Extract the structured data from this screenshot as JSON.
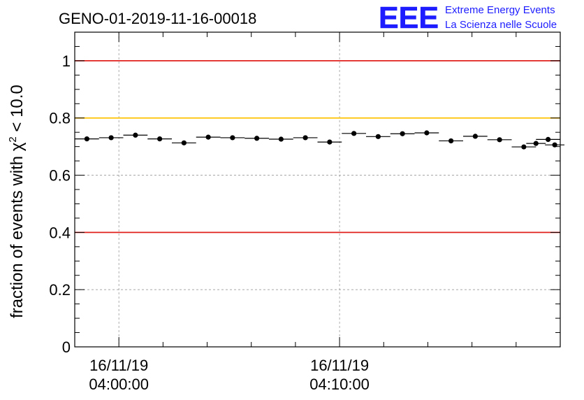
{
  "chart_data": {
    "type": "scatter",
    "title": "GENO-01-2019-11-16-00018",
    "ylabel": "fraction of events with χ² < 10.0",
    "ylabel_parts": {
      "prefix": "fraction of events with ",
      "symbol": "χ",
      "exponent": "2",
      "suffix": " < 10.0"
    },
    "xlabel": "",
    "ylim": [
      0,
      1.1
    ],
    "yticks": [
      0,
      0.2,
      0.4,
      0.6,
      0.8,
      1
    ],
    "ytick_labels": [
      "0",
      "0.2",
      "0.4",
      "0.6",
      "0.8",
      "1"
    ],
    "x_unit": "minutes since 16/11/19 03:58",
    "xlim": [
      0,
      22
    ],
    "xticks": [
      {
        "x": 2,
        "date": "16/11/19",
        "time": "04:00:00"
      },
      {
        "x": 12,
        "date": "16/11/19",
        "time": "04:10:00"
      }
    ],
    "x_minor_ticks": [
      4,
      6,
      8,
      10,
      14,
      16,
      18,
      20
    ],
    "grid": true,
    "reference_lines": [
      {
        "y": 1.0,
        "color": "#e0201c"
      },
      {
        "y": 0.8,
        "color": "#ffc200"
      },
      {
        "y": 0.4,
        "color": "#e0201c"
      }
    ],
    "series": [
      {
        "name": "fraction",
        "bin_width": 1.1,
        "x": [
          0.55,
          1.65,
          2.75,
          3.85,
          4.95,
          6.05,
          7.15,
          8.25,
          9.35,
          10.45,
          11.55,
          12.65,
          13.75,
          14.85,
          15.95,
          17.05,
          18.15,
          19.25,
          20.35,
          21.45
        ],
        "values": [
          0.727,
          0.731,
          0.74,
          0.727,
          0.713,
          0.733,
          0.731,
          0.729,
          0.726,
          0.731,
          0.716,
          0.746,
          0.735,
          0.745,
          0.748,
          0.72,
          0.736,
          0.724,
          0.699,
          0.725
        ],
        "extra_x": [
          20.9,
          21.75
        ],
        "extra_values": [
          0.711,
          0.706
        ]
      }
    ]
  },
  "logo": {
    "mark": "EEE",
    "line1": "Extreme Energy Events",
    "line2": "La Scienza nelle Scuole",
    "color": "#1d1dff"
  }
}
